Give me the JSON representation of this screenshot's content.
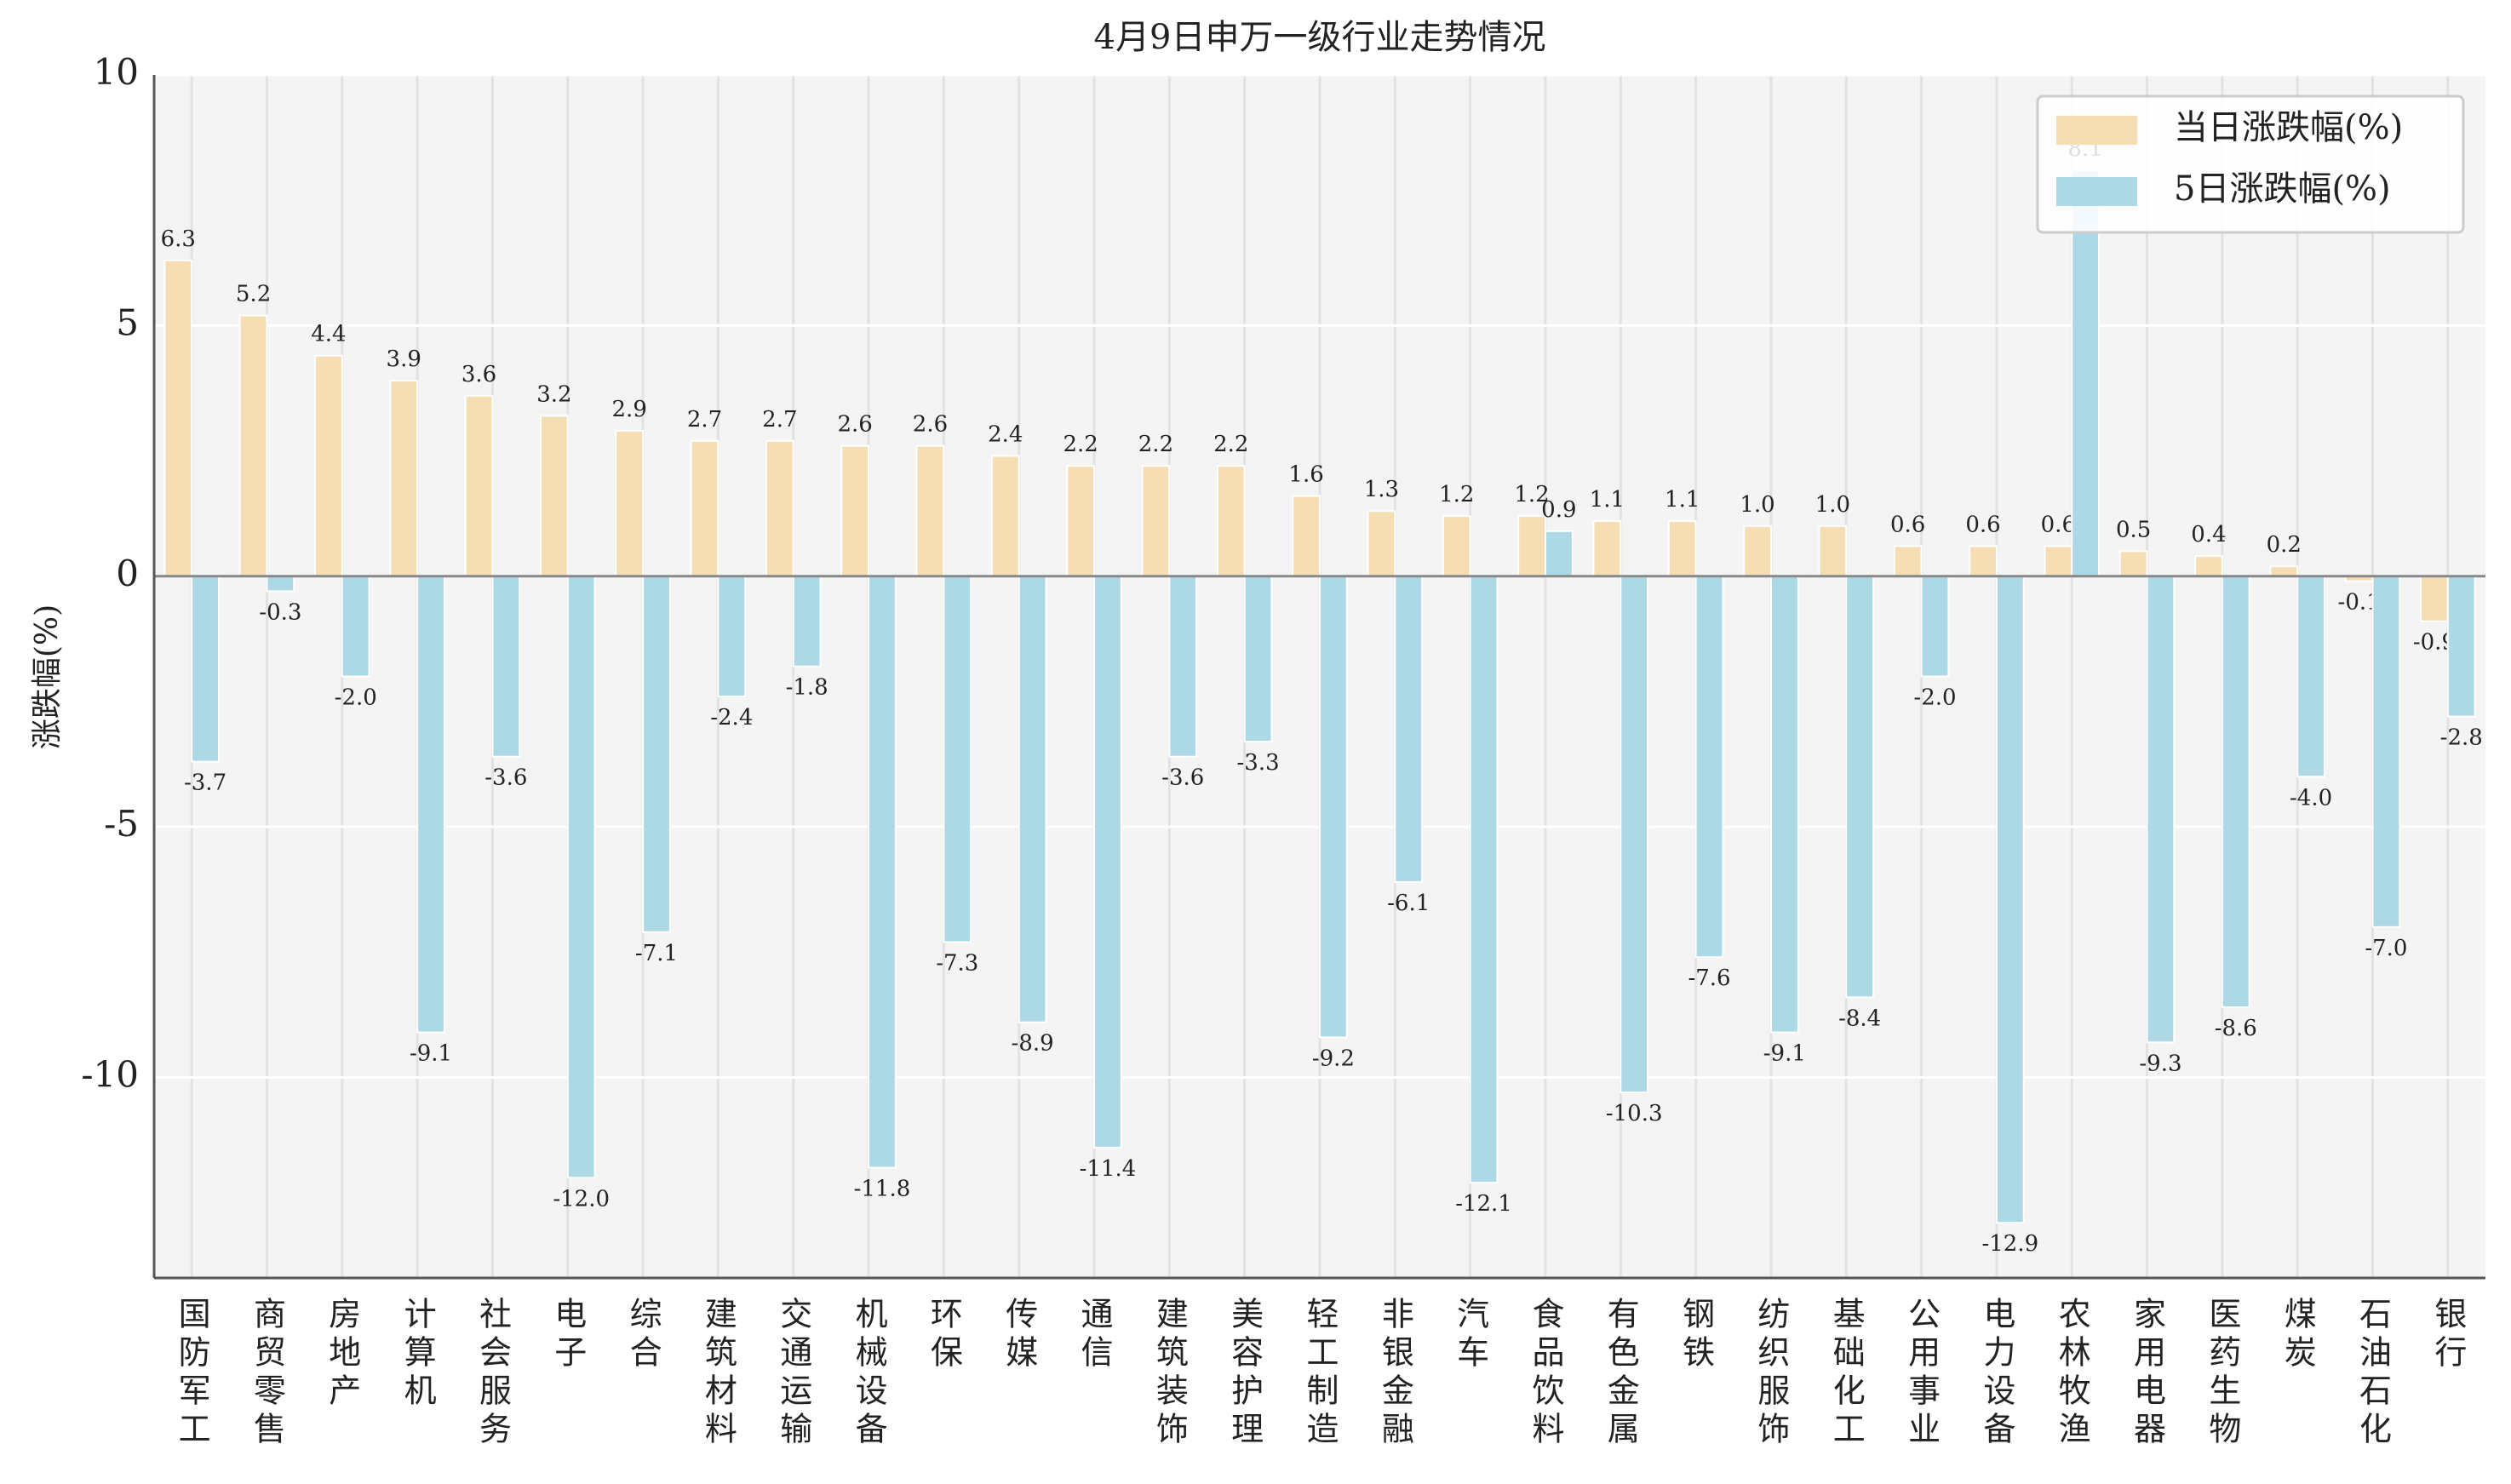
{
  "chart_data": {
    "type": "bar",
    "title": "4月9日申万一级行业走势情况",
    "y_label": "涨跌幅(%)",
    "categories": [
      "国防军工",
      "商贸零售",
      "房地产",
      "计算机",
      "社会服务",
      "电子",
      "综合",
      "建筑材料",
      "交通运输",
      "机械设备",
      "环保",
      "传媒",
      "通信",
      "建筑装饰",
      "美容护理",
      "轻工制造",
      "非银金融",
      "汽车",
      "食品饮料",
      "有色金属",
      "钢铁",
      "纺织服饰",
      "基础化工",
      "公用事业",
      "电力设备",
      "农林牧渔",
      "家用电器",
      "医药生物",
      "煤炭",
      "石油石化",
      "银行"
    ],
    "series": [
      {
        "name": "当日涨跌幅(%)",
        "color": "#f5deb3",
        "values": [
          6.3,
          5.2,
          4.4,
          3.9,
          3.6,
          3.2,
          2.9,
          2.7,
          2.7,
          2.6,
          2.6,
          2.4,
          2.2,
          2.2,
          2.2,
          1.6,
          1.3,
          1.2,
          1.2,
          1.1,
          1.1,
          1.0,
          1.0,
          0.6,
          0.6,
          0.6,
          0.5,
          0.4,
          0.2,
          -0.1,
          -0.9
        ],
        "value_labels": [
          "6.3",
          "5.2",
          "4.4",
          "3.9",
          "3.6",
          "3.2",
          "2.9",
          "2.7",
          "2.7",
          "2.6",
          "2.6",
          "2.4",
          "2.2",
          "2.2",
          "2.2",
          "1.6",
          "1.3",
          "1.2",
          "1.2",
          "1.1",
          "1.1",
          "1.0",
          "1.0",
          "0.6",
          "0.6",
          "0.6",
          "0.5",
          "0.4",
          "0.2",
          "-0.1",
          "-0.9"
        ]
      },
      {
        "name": "5日涨跌幅(%)",
        "color": "#add8e6",
        "values": [
          -3.7,
          -0.3,
          -2.0,
          -9.1,
          -3.6,
          -12.0,
          -7.1,
          -2.4,
          -1.8,
          -11.8,
          -7.3,
          -8.9,
          -11.4,
          -3.6,
          -3.3,
          -9.2,
          -6.1,
          -12.1,
          0.9,
          -10.3,
          -7.6,
          -9.1,
          -8.4,
          -2.0,
          -12.9,
          8.1,
          -9.3,
          -8.6,
          -4.0,
          -7.0,
          -2.8
        ],
        "value_labels": [
          "-3.7",
          "-0.3",
          "-2.0",
          "-9.1",
          "-3.6",
          "-12.0",
          "-7.1",
          "-2.4",
          "-1.8",
          "-11.8",
          "-7.3",
          "-8.9",
          "-11.4",
          "-3.6",
          "-3.3",
          "-9.2",
          "-6.1",
          "-12.1",
          "0.9",
          "-10.3",
          "-7.6",
          "-9.1",
          "-8.4",
          "-2.0",
          "-12.9",
          "8.1",
          "-9.3",
          "-8.6",
          "-4.0",
          "-7.0",
          "-2.8"
        ]
      }
    ],
    "ylim": [
      -14,
      10
    ],
    "yticks": [
      -10,
      -5,
      0,
      5,
      10
    ],
    "grid": true,
    "legend": "upper right"
  }
}
